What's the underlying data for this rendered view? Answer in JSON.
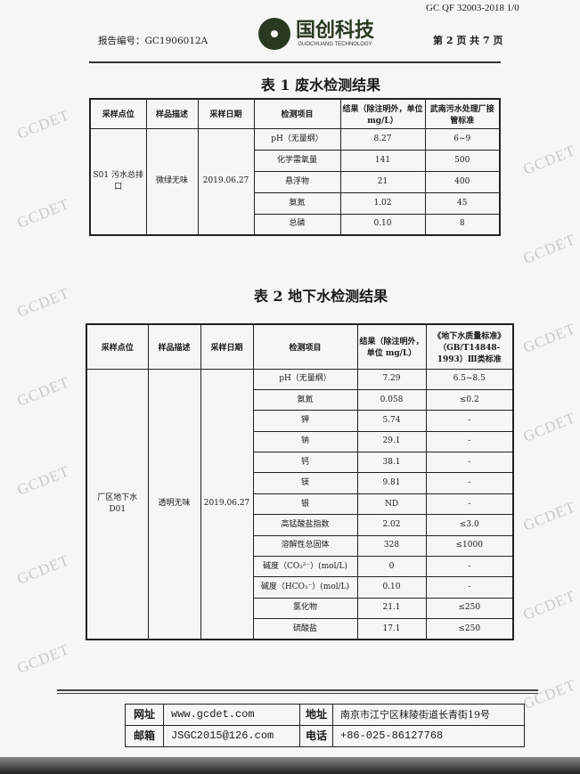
{
  "header": {
    "form_code": "GC QF 32003-2018 1/0",
    "report_no": "报告编号：GC1906012A",
    "logo_cn": "国创科技",
    "logo_en": "GUOCHUANG TECHNOLOGY",
    "page_no": "第 2 页 共 7 页"
  },
  "watermark": "GCDET",
  "table1": {
    "title": "表 1  废水检测结果",
    "headers": [
      "采样点位",
      "样品描述",
      "采样日期",
      "检测项目",
      "结果（除注明外，单位 mg/L）",
      "武南污水处理厂接管标准"
    ],
    "site": "S01 污水总排口",
    "desc": "微绿无味",
    "date": "2019.06.27",
    "rows": [
      [
        "pH（无量纲）",
        "8.27",
        "6~9"
      ],
      [
        "化学需氧量",
        "141",
        "500"
      ],
      [
        "悬浮物",
        "21",
        "400"
      ],
      [
        "氨氮",
        "1.02",
        "45"
      ],
      [
        "总磷",
        "0.10",
        "8"
      ]
    ]
  },
  "table2": {
    "title": "表 2 地下水检测结果",
    "headers": [
      "采样点位",
      "样品描述",
      "采样日期",
      "检测项目",
      "结果（除注明外，单位 mg/L）",
      "《地下水质量标准》（GB/T14848-1993）Ⅲ类标准"
    ],
    "site": "厂区地下水 D01",
    "desc": "透明无味",
    "date": "2019.06.27",
    "rows": [
      [
        "pH（无量纲）",
        "7.29",
        "6.5~8.5"
      ],
      [
        "氨氮",
        "0.058",
        "≤0.2"
      ],
      [
        "钾",
        "5.74",
        "-"
      ],
      [
        "钠",
        "29.1",
        "-"
      ],
      [
        "钙",
        "38.1",
        "-"
      ],
      [
        "镁",
        "9.81",
        "-"
      ],
      [
        "银",
        "ND",
        "-"
      ],
      [
        "高锰酸盐指数",
        "2.02",
        "≤3.0"
      ],
      [
        "溶解性总固体",
        "328",
        "≤1000"
      ],
      [
        "碱度（CO₃²⁻）(mol/L)",
        "0",
        "-"
      ],
      [
        "碱度（HCO₃⁻）(mol/L)",
        "0.10",
        "-"
      ],
      [
        "氯化物",
        "21.1",
        "≤250"
      ],
      [
        "硫酸盐",
        "17.1",
        "≤250"
      ]
    ]
  },
  "footer": {
    "web_label": "网址",
    "web": "www.gcdet.com",
    "addr_label": "地址",
    "addr": "南京市江宁区秣陵街道长青街19号",
    "mail_label": "邮箱",
    "mail": "JSGC2015@126.com",
    "tel_label": "电话",
    "tel": "+86-025-86127768"
  }
}
